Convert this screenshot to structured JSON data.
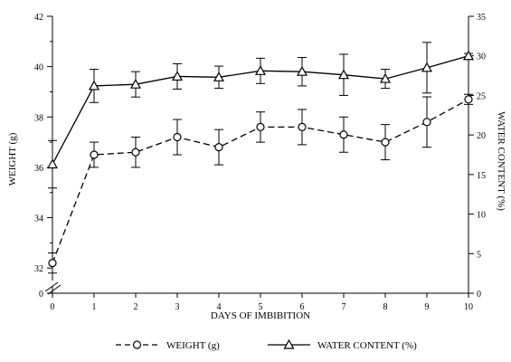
{
  "chart_data": {
    "type": "line",
    "title": "",
    "xlabel": "DAYS OF IMBIBITION",
    "ylabel_left": "WEIGHT (g)",
    "ylabel_right": "WATER CONTENT (%)",
    "x": [
      0,
      1,
      2,
      3,
      4,
      5,
      6,
      7,
      8,
      9,
      10
    ],
    "x_ticks": [
      "0",
      "1",
      "2",
      "3",
      "4",
      "5",
      "6",
      "7",
      "8",
      "9",
      "10"
    ],
    "xlim": [
      0,
      10
    ],
    "y_left_ticks": [
      "0",
      "32",
      "34",
      "36",
      "38",
      "40",
      "42"
    ],
    "y_left_lim": [
      31,
      42
    ],
    "y_left_axis_break": true,
    "y_right_ticks": [
      "0",
      "5",
      "10",
      "15",
      "20",
      "25",
      "30",
      "35"
    ],
    "y_right_lim": [
      0,
      35
    ],
    "grid": false,
    "legend_position": "bottom",
    "series": [
      {
        "name": "WEIGHT (g)",
        "axis": "left",
        "line_style": "dashed",
        "marker": "circle",
        "values": [
          32.2,
          36.5,
          36.6,
          37.2,
          36.8,
          37.6,
          37.6,
          37.3,
          37.0,
          37.8,
          38.7
        ],
        "errors": [
          0.4,
          0.5,
          0.6,
          0.7,
          0.7,
          0.6,
          0.7,
          0.7,
          0.7,
          1.0,
          0.2
        ]
      },
      {
        "name": "WATER CONTENT (%)",
        "axis": "right",
        "line_style": "solid",
        "marker": "triangle",
        "values": [
          16.3,
          26.2,
          26.4,
          27.4,
          27.3,
          28.1,
          28.0,
          27.6,
          27.1,
          28.5,
          30.0
        ],
        "errors": [
          3.0,
          2.1,
          1.6,
          1.6,
          1.4,
          1.6,
          1.8,
          2.6,
          1.2,
          3.2,
          0.3
        ]
      }
    ]
  }
}
